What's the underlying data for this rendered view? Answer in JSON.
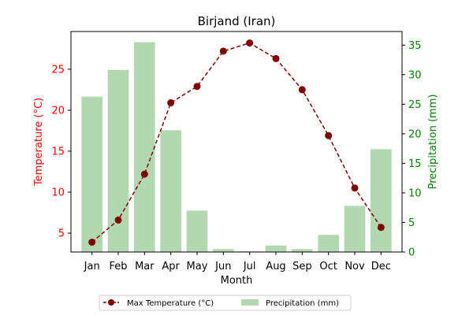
{
  "chart_data": {
    "type": "bar+line",
    "title": "Birjand (Iran)",
    "xlabel": "Month",
    "categories": [
      "Jan",
      "Feb",
      "Mar",
      "Apr",
      "May",
      "Jun",
      "Jul",
      "Aug",
      "Sep",
      "Oct",
      "Nov",
      "Dec"
    ],
    "left_axis": {
      "label": "Temperature (°C)",
      "color": "#ff0000",
      "ylim": [
        2.7,
        29.6
      ],
      "ticks": [
        5,
        10,
        15,
        20,
        25
      ]
    },
    "right_axis": {
      "label": "Precipitation (mm)",
      "color": "#008000",
      "ylim": [
        0,
        37.3
      ],
      "ticks": [
        0,
        5,
        10,
        15,
        20,
        25,
        30,
        35
      ]
    },
    "series": [
      {
        "name": "Max Temperature (°C)",
        "kind": "line",
        "axis": "left",
        "color": "#800000",
        "values": [
          3.9,
          6.6,
          12.2,
          20.9,
          22.9,
          27.2,
          28.2,
          26.3,
          22.5,
          16.9,
          10.5,
          5.7
        ]
      },
      {
        "name": "Precipitation (mm)",
        "kind": "bar",
        "axis": "right",
        "color": "#b2d8b2",
        "values": [
          26.3,
          30.8,
          35.5,
          20.6,
          7.0,
          0.5,
          0.1,
          1.1,
          0.5,
          2.9,
          7.8,
          17.4
        ]
      }
    ],
    "legend": {
      "placement": "bottom-center",
      "columns": 2
    }
  }
}
